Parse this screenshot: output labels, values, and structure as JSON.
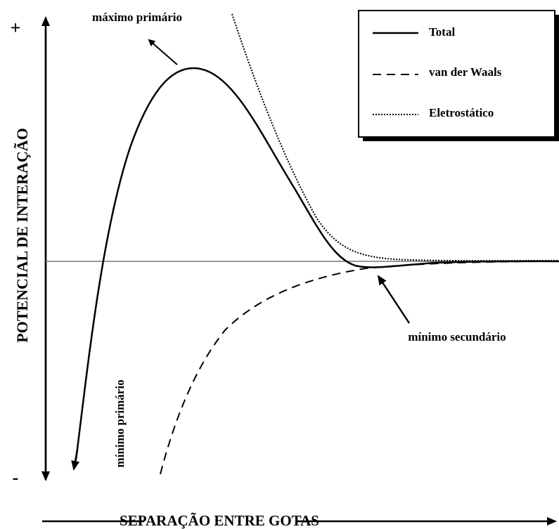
{
  "axes": {
    "y_label": "POTENCIAL DE INTERAÇÃO",
    "x_label": "SEPARAÇÃO ENTRE GOTAS",
    "y_plus": "+",
    "y_minus": "-"
  },
  "annotations": {
    "primary_max": "máximo primário",
    "secondary_min": "mínimo secundário",
    "primary_min": "mínimo primário"
  },
  "legend": {
    "items": [
      {
        "label": "Total"
      },
      {
        "label": "van der Waals"
      },
      {
        "label": "Eletrostático"
      }
    ]
  }
}
